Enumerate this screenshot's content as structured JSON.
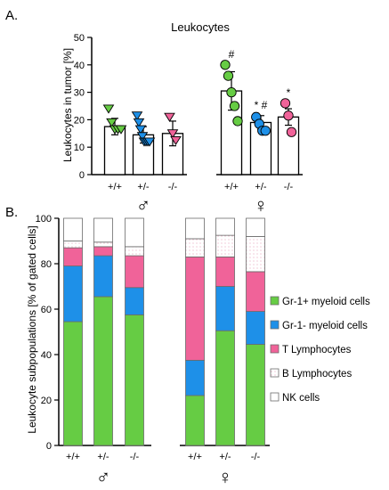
{
  "colors": {
    "green": "#66cc44",
    "blue": "#1e90e8",
    "pink": "#f06399",
    "white": "#ffffff",
    "axis": "#000000"
  },
  "chart_data": [
    {
      "panel_label": "A.",
      "type": "bar",
      "title": "Leukocytes",
      "ylabel": "Leukocytes in tumor [%]",
      "ylim": [
        0,
        50
      ],
      "yticks": [
        0,
        10,
        20,
        30,
        40,
        50
      ],
      "grid": false,
      "categories": [
        "+/+",
        "+/-",
        "-/-",
        "+/+",
        "+/-",
        "-/-"
      ],
      "groups": [
        {
          "symbol": "♂",
          "categories": [
            "+/+",
            "+/-",
            "-/-"
          ]
        },
        {
          "symbol": "♀",
          "categories": [
            "+/+",
            "+/-",
            "-/-"
          ]
        }
      ],
      "values": [
        17.5,
        14.5,
        15,
        30.5,
        19,
        21
      ],
      "errors": [
        3,
        3,
        4.5,
        7,
        2.5,
        3
      ],
      "point_colors": [
        "#66cc44",
        "#1e90e8",
        "#f06399",
        "#66cc44",
        "#1e90e8",
        "#f06399"
      ],
      "point_markers": [
        "triangle-down",
        "triangle-down",
        "triangle-down",
        "circle",
        "circle",
        "circle"
      ],
      "points": [
        [
          24,
          19,
          16.5,
          16.5,
          16.5
        ],
        [
          21.5,
          19,
          16.5,
          14,
          12,
          12,
          12,
          12
        ],
        [
          21,
          15,
          12.5
        ],
        [
          40,
          36,
          30,
          25,
          19.5
        ],
        [
          21,
          18.5,
          16,
          16
        ],
        [
          26,
          21.5,
          15.5
        ]
      ],
      "annotations": [
        "",
        "",
        "",
        "#",
        "* #",
        "*"
      ]
    },
    {
      "panel_label": "B.",
      "type": "bar",
      "stacked": true,
      "ylabel": "Leukocyte subpopulations [% of gated cells]",
      "ylim": [
        0,
        100
      ],
      "yticks": [
        0,
        20,
        40,
        60,
        80,
        100
      ],
      "grid": false,
      "legend": "right",
      "categories": [
        "+/+",
        "+/-",
        "-/-",
        "+/+",
        "+/-",
        "-/-"
      ],
      "groups": [
        {
          "symbol": "♂",
          "categories": [
            "+/+",
            "+/-",
            "-/-"
          ]
        },
        {
          "symbol": "♀",
          "categories": [
            "+/+",
            "+/-",
            "-/-"
          ]
        }
      ],
      "series": [
        {
          "name": "Gr-1+ myeloid cells",
          "color": "#66cc44",
          "pattern": "solid",
          "values": [
            54.5,
            65.5,
            57.5,
            22,
            50.5,
            44.5
          ]
        },
        {
          "name": "Gr-1- myeloid cells",
          "color": "#1e90e8",
          "pattern": "solid",
          "values": [
            24.5,
            18,
            12,
            15.5,
            19.5,
            14.5
          ]
        },
        {
          "name": "T Lymphocytes",
          "color": "#f06399",
          "pattern": "solid",
          "values": [
            8,
            4,
            14,
            45.5,
            13,
            17.5
          ]
        },
        {
          "name": "B Lymphocytes",
          "color": "#ffffff",
          "pattern": "dotted",
          "values": [
            3,
            2,
            4,
            8,
            9.5,
            15.5
          ]
        },
        {
          "name": "NK cells",
          "color": "#ffffff",
          "pattern": "solid",
          "values": [
            10,
            10.5,
            12.5,
            9,
            7.5,
            8
          ]
        }
      ]
    }
  ]
}
